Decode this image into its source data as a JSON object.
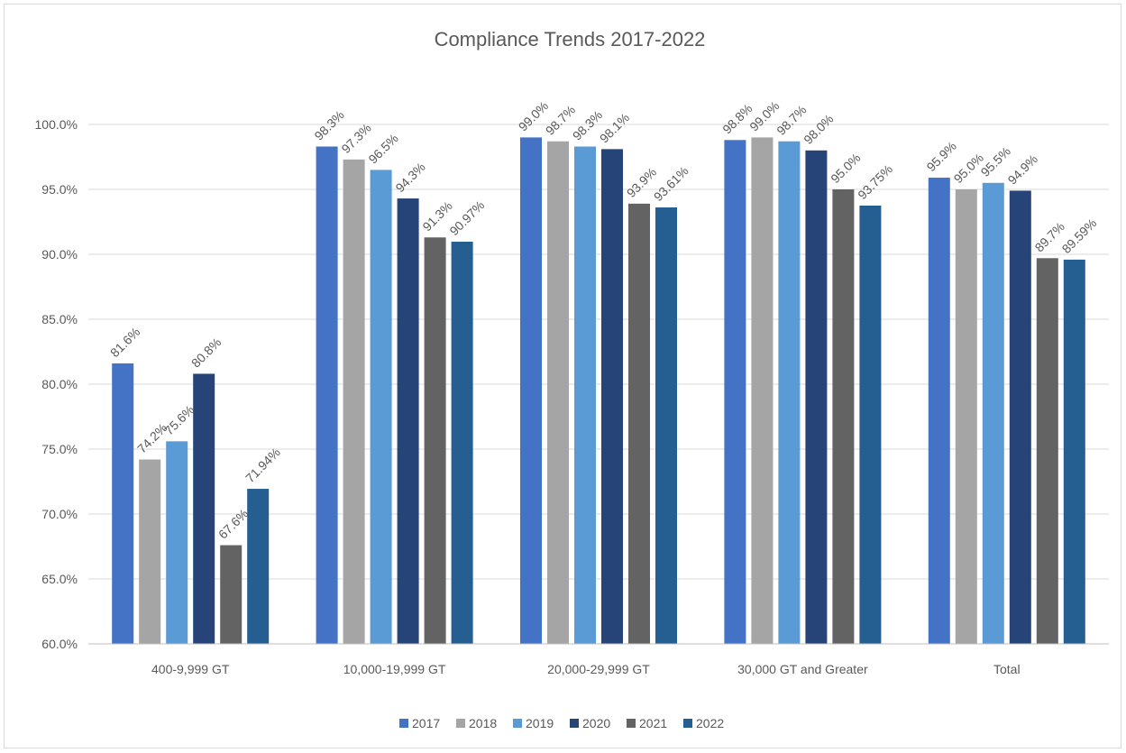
{
  "chart_data": {
    "type": "bar",
    "title": "Compliance Trends 2017-2022",
    "xlabel": "",
    "ylabel": "",
    "ylim": [
      60,
      100
    ],
    "y_ticks": [
      "60.0%",
      "65.0%",
      "70.0%",
      "75.0%",
      "80.0%",
      "85.0%",
      "90.0%",
      "95.0%",
      "100.0%"
    ],
    "y_tick_values": [
      60,
      65,
      70,
      75,
      80,
      85,
      90,
      95,
      100
    ],
    "grid": true,
    "legend_position": "bottom",
    "categories": [
      "400-9,999 GT",
      "10,000-19,999 GT",
      "20,000-29,999 GT",
      "30,000 GT and Greater",
      "Total"
    ],
    "series": [
      {
        "name": "2017",
        "color": "#4472c4",
        "values": [
          81.6,
          98.3,
          99.0,
          98.8,
          95.9
        ],
        "labels": [
          "81.6%",
          "98.3%",
          "99.0%",
          "98.8%",
          "95.9%"
        ]
      },
      {
        "name": "2018",
        "color": "#a5a5a5",
        "values": [
          74.2,
          97.3,
          98.7,
          99.0,
          95.0
        ],
        "labels": [
          "74.2%",
          "97.3%",
          "98.7%",
          "99.0%",
          "95.0%"
        ]
      },
      {
        "name": "2019",
        "color": "#5b9bd5",
        "values": [
          75.6,
          96.5,
          98.3,
          98.7,
          95.5
        ],
        "labels": [
          "75.6%",
          "96.5%",
          "98.3%",
          "98.7%",
          "95.5%"
        ]
      },
      {
        "name": "2020",
        "color": "#264478",
        "values": [
          80.8,
          94.3,
          98.1,
          98.0,
          94.9
        ],
        "labels": [
          "80.8%",
          "94.3%",
          "98.1%",
          "98.0%",
          "94.9%"
        ]
      },
      {
        "name": "2021",
        "color": "#636363",
        "values": [
          67.6,
          91.3,
          93.9,
          95.0,
          89.7
        ],
        "labels": [
          "67.6%",
          "91.3%",
          "93.9%",
          "95.0%",
          "89.7%"
        ]
      },
      {
        "name": "2022",
        "color": "#255e91",
        "values": [
          71.94,
          90.97,
          93.61,
          93.75,
          89.59
        ],
        "labels": [
          "71.94%",
          "90.97%",
          "93.61%",
          "93.75%",
          "89.59%"
        ]
      }
    ]
  }
}
